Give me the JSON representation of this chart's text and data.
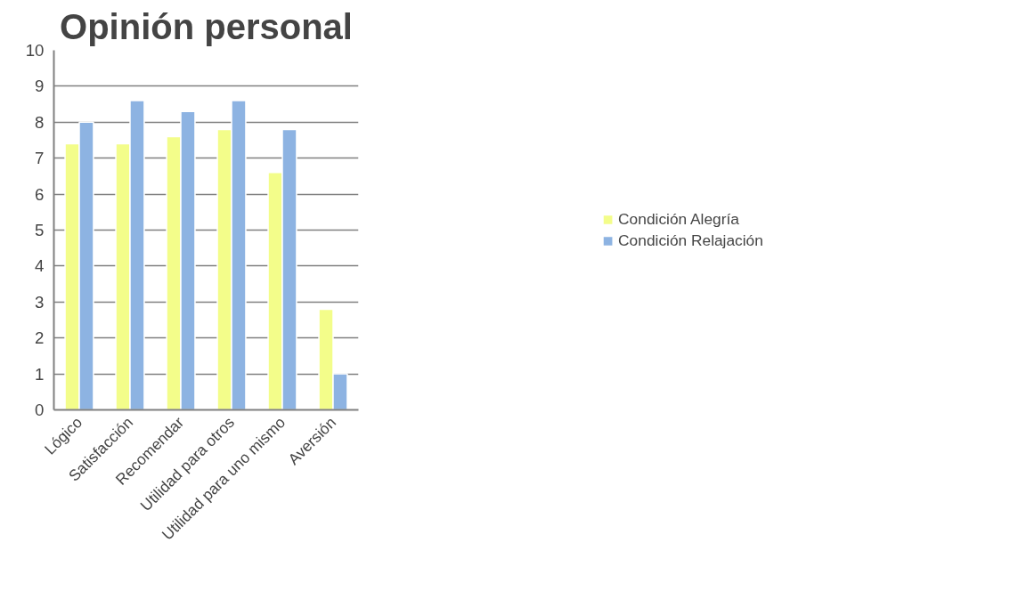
{
  "chart_data": {
    "type": "bar",
    "title": "Opinión personal",
    "categories": [
      "Lógico",
      "Satisfacción",
      "Recomendar",
      "Utilidad para otros",
      "Utilidad para uno mismo",
      "Aversión"
    ],
    "series": [
      {
        "name": "Condición Alegría",
        "color": "#f3fd8a",
        "values": [
          7.4,
          7.4,
          7.6,
          7.8,
          6.6,
          2.8
        ]
      },
      {
        "name": "Condición Relajación",
        "color": "#8db3e2",
        "values": [
          8.0,
          8.6,
          8.3,
          8.6,
          7.8,
          1.0
        ]
      }
    ],
    "ylim": [
      0,
      10
    ],
    "yticks": [
      0,
      1,
      2,
      3,
      4,
      5,
      6,
      7,
      8,
      9,
      10
    ],
    "grid": "y",
    "legend": "right"
  }
}
